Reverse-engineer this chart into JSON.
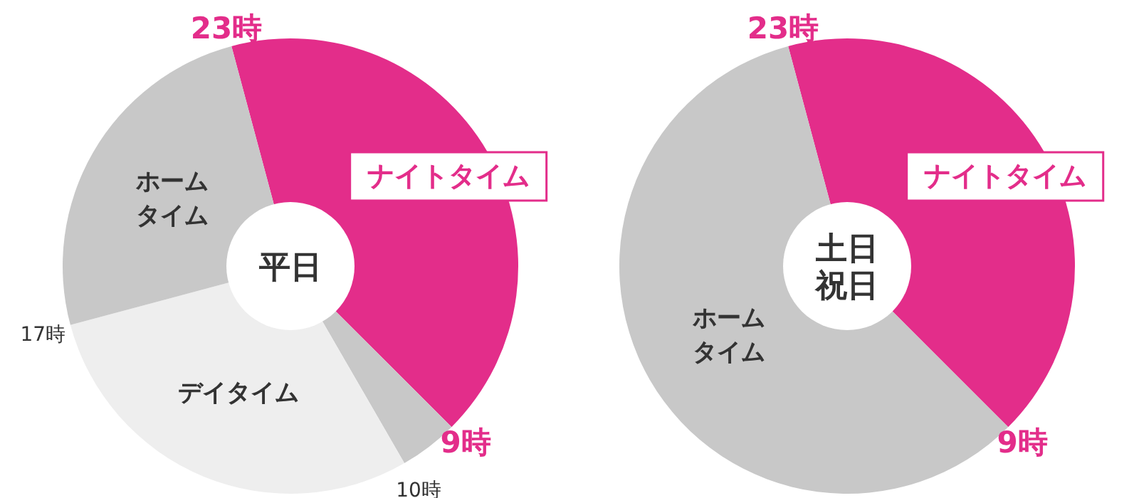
{
  "chart_data": [
    {
      "type": "donut",
      "title": "平日",
      "categories": [
        "ナイトタイム",
        null,
        "デイタイム",
        "ホームタイム"
      ],
      "values": [
        41.66,
        4.17,
        29.17,
        25.0
      ],
      "colors": [
        "#e32d8a",
        "#c8c8c8",
        "#eeeeee",
        "#c8c8c8"
      ],
      "annotations": [
        "23時",
        "9時",
        "10時",
        "17時"
      ]
    },
    {
      "type": "donut",
      "title": "土日祝日",
      "categories": [
        "ナイトタイム",
        "ホームタイム"
      ],
      "values": [
        41.67,
        58.33
      ],
      "colors": [
        "#e32d8a",
        "#c8c8c8"
      ],
      "annotations": [
        "23時",
        "9時"
      ]
    }
  ]
}
